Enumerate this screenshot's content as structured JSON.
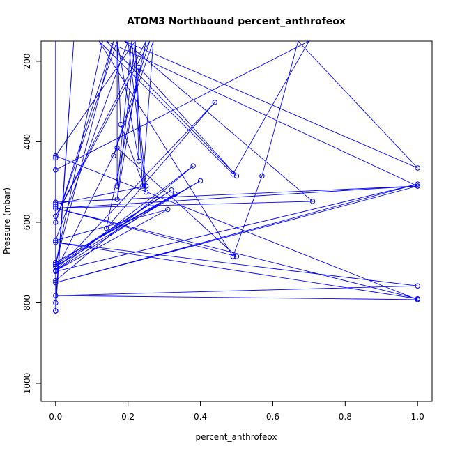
{
  "chart_data": {
    "type": "scatter",
    "title": "ATOM3 Northbound percent_anthrofeox",
    "xlabel": "percent_anthrofeox",
    "ylabel": "Pressure (mbar)",
    "xlim": [
      -0.04,
      1.04
    ],
    "ylim": [
      1045,
      150
    ],
    "y_reversed": true,
    "x_ticks": [
      "0.0",
      "0.2",
      "0.4",
      "0.6",
      "0.8",
      "1.0"
    ],
    "y_ticks": [
      "200",
      "400",
      "600",
      "800",
      "1000"
    ],
    "grid": false,
    "legend": "none",
    "color": "#0000ff",
    "series": [
      {
        "name": "",
        "points": [
          [
            0.0,
            150
          ],
          [
            0.0,
            820
          ],
          [
            0.0,
            150
          ],
          [
            0.0,
            820
          ],
          [
            0.05,
            150
          ],
          [
            0.0,
            800
          ],
          [
            0.0,
            745
          ],
          [
            0.38,
            460
          ],
          [
            0.0,
            720
          ],
          [
            0.33,
            530
          ],
          [
            0.0,
            700
          ],
          [
            0.4,
            497
          ],
          [
            0.0,
            710
          ],
          [
            0.32,
            520
          ],
          [
            0.0,
            705
          ],
          [
            0.13,
            150
          ],
          [
            0.0,
            705
          ],
          [
            0.16,
            150
          ],
          [
            0.0,
            600
          ],
          [
            0.17,
            150
          ],
          [
            0.18,
            357
          ],
          [
            0.25,
            525
          ],
          [
            0.2,
            150
          ],
          [
            0.0,
            645
          ],
          [
            0.31,
            568
          ],
          [
            0.0,
            720
          ],
          [
            0.44,
            302
          ],
          [
            0.14,
            615
          ],
          [
            0.25,
            150
          ],
          [
            0.0,
            585
          ],
          [
            0.26,
            150
          ],
          [
            0.16,
            435
          ],
          [
            0.27,
            150
          ],
          [
            0.24,
            510
          ],
          [
            0.22,
            150
          ],
          [
            0.23,
            448
          ],
          [
            0.17,
            150
          ],
          [
            0.17,
            510
          ],
          [
            0.21,
            150
          ],
          [
            0.25,
            510
          ],
          [
            0.0,
            555
          ],
          [
            0.0,
            560
          ],
          [
            0.0,
            470
          ],
          [
            0.7,
            150
          ],
          [
            0.49,
            480
          ],
          [
            0.12,
            150
          ],
          [
            0.49,
            685
          ],
          [
            0.57,
            485
          ],
          [
            0.67,
            150
          ],
          [
            1.0,
            465
          ],
          [
            0.19,
            150
          ],
          [
            0.71,
            548
          ],
          [
            0.0,
            565
          ],
          [
            1.0,
            510
          ],
          [
            0.0,
            750
          ],
          [
            1.0,
            505
          ],
          [
            0.0,
            722
          ],
          [
            0.17,
            415
          ],
          [
            0.5,
            685
          ],
          [
            0.0,
            565
          ],
          [
            1.0,
            790
          ],
          [
            0.0,
            650
          ],
          [
            1.0,
            758
          ],
          [
            0.0,
            782
          ],
          [
            1.0,
            792
          ],
          [
            0.0,
            435
          ],
          [
            0.22,
            150
          ],
          [
            0.17,
            543
          ],
          [
            0.23,
            215
          ],
          [
            0.5,
            485
          ],
          [
            0.14,
            150
          ],
          [
            1.0,
            510
          ],
          [
            0.0,
            550
          ],
          [
            0.0,
            470
          ],
          [
            0.0,
            440
          ],
          [
            0.0,
            820
          ],
          [
            0.0,
            820
          ]
        ]
      }
    ]
  }
}
